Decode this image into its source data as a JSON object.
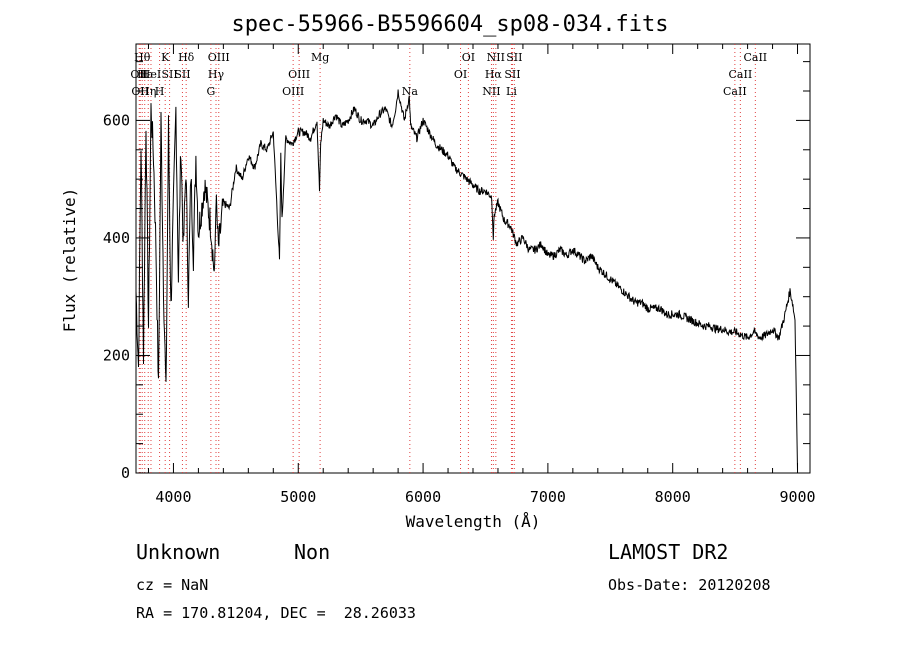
{
  "chart_data": {
    "type": "line",
    "title": "spec-55966-B5596604_sp08-034.fits",
    "xlabel": "Wavelength (Å)",
    "ylabel": "Flux (relative)",
    "xlim": [
      3700,
      9100
    ],
    "ylim": [
      0,
      730
    ],
    "x_ticks": [
      4000,
      5000,
      6000,
      7000,
      8000,
      9000
    ],
    "y_ticks": [
      0,
      200,
      400,
      600
    ],
    "grid": false,
    "series": [
      {
        "x": [
          3700,
          3720,
          3740,
          3760,
          3780,
          3800,
          3820,
          3840,
          3860,
          3880,
          3900,
          3920,
          3940,
          3960,
          3980,
          4000,
          4020,
          4040,
          4060,
          4080,
          4100,
          4120,
          4140,
          4160,
          4180,
          4200,
          4250,
          4300,
          4330,
          4340,
          4360,
          4400,
          4450,
          4500,
          4550,
          4600,
          4650,
          4700,
          4750,
          4800,
          4850,
          4860,
          4870,
          4900,
          4950,
          5000,
          5050,
          5100,
          5150,
          5170,
          5180,
          5200,
          5250,
          5300,
          5350,
          5400,
          5450,
          5500,
          5550,
          5600,
          5650,
          5700,
          5750,
          5780,
          5800,
          5850,
          5890,
          5900,
          5950,
          6000,
          6050,
          6100,
          6150,
          6200,
          6250,
          6300,
          6350,
          6400,
          6450,
          6500,
          6550,
          6563,
          6570,
          6600,
          6650,
          6700,
          6750,
          6800,
          6850,
          6900,
          6950,
          7000,
          7050,
          7100,
          7150,
          7200,
          7250,
          7300,
          7350,
          7400,
          7450,
          7500,
          7550,
          7600,
          7650,
          7700,
          7750,
          7800,
          7850,
          7900,
          7950,
          8000,
          8050,
          8100,
          8150,
          8200,
          8250,
          8300,
          8350,
          8400,
          8450,
          8500,
          8550,
          8600,
          8650,
          8700,
          8750,
          8800,
          8850,
          8900,
          8920,
          8940,
          8960,
          8980,
          8990,
          9000
        ],
        "y": [
          310,
          180,
          560,
          200,
          600,
          250,
          620,
          540,
          380,
          140,
          600,
          320,
          130,
          590,
          280,
          450,
          620,
          330,
          560,
          380,
          520,
          300,
          510,
          370,
          540,
          410,
          490,
          420,
          330,
          470,
          380,
          460,
          450,
          520,
          500,
          540,
          520,
          560,
          550,
          580,
          360,
          540,
          430,
          570,
          560,
          580,
          580,
          570,
          600,
          480,
          560,
          600,
          590,
          610,
          590,
          600,
          620,
          600,
          600,
          590,
          610,
          620,
          590,
          620,
          650,
          600,
          640,
          590,
          570,
          600,
          580,
          560,
          550,
          540,
          520,
          510,
          500,
          490,
          480,
          480,
          470,
          400,
          440,
          460,
          430,
          420,
          390,
          400,
          380,
          380,
          390,
          370,
          370,
          380,
          370,
          380,
          370,
          360,
          370,
          350,
          340,
          330,
          320,
          310,
          300,
          290,
          290,
          280,
          280,
          280,
          270,
          270,
          270,
          265,
          260,
          255,
          250,
          250,
          245,
          245,
          240,
          240,
          235,
          230,
          240,
          230,
          235,
          245,
          230,
          270,
          290,
          310,
          290,
          260,
          130,
          5
        ]
      }
    ],
    "lines": [
      {
        "x": 3726,
        "row": 1,
        "text": "OII"
      },
      {
        "x": 3734,
        "row": 2,
        "text": "OII"
      },
      {
        "x": 3750,
        "row": 0,
        "text": "Hθ"
      },
      {
        "x": 3770,
        "row": 1,
        "text": "Hε"
      },
      {
        "x": 3798,
        "row": 2,
        "text": "Hη"
      },
      {
        "x": 3820,
        "row": 1,
        "text": "HeI"
      },
      {
        "x": 3889,
        "row": 2,
        "text": "H"
      },
      {
        "x": 3934,
        "row": 0,
        "text": "K"
      },
      {
        "x": 3969,
        "row": 1,
        "text": "SII"
      },
      {
        "x": 4072,
        "row": 1,
        "text": "SII"
      },
      {
        "x": 4102,
        "row": 0,
        "text": "Hδ"
      },
      {
        "x": 4300,
        "row": 2,
        "text": "G"
      },
      {
        "x": 4341,
        "row": 1,
        "text": "Hγ"
      },
      {
        "x": 4363,
        "row": 0,
        "text": "OIII"
      },
      {
        "x": 4959,
        "row": 2,
        "text": "OIII"
      },
      {
        "x": 5007,
        "row": 1,
        "text": "OIII"
      },
      {
        "x": 5175,
        "row": 0,
        "text": "Mg"
      },
      {
        "x": 5894,
        "row": 2,
        "text": "Na"
      },
      {
        "x": 6300,
        "row": 1,
        "text": "OI"
      },
      {
        "x": 6363,
        "row": 0,
        "text": "OI"
      },
      {
        "x": 6548,
        "row": 2,
        "text": "NII"
      },
      {
        "x": 6563,
        "row": 1,
        "text": "Hα"
      },
      {
        "x": 6583,
        "row": 0,
        "text": "NII"
      },
      {
        "x": 6708,
        "row": 2,
        "text": "Li"
      },
      {
        "x": 6716,
        "row": 1,
        "text": "SII"
      },
      {
        "x": 6731,
        "row": 0,
        "text": "SII"
      },
      {
        "x": 8498,
        "row": 2,
        "text": "CaII"
      },
      {
        "x": 8542,
        "row": 1,
        "text": "CaII"
      },
      {
        "x": 8662,
        "row": 0,
        "text": "CaII"
      }
    ]
  },
  "info": {
    "class": "Unknown",
    "subclass": "Non",
    "survey": "LAMOST DR2",
    "cz": "cz = NaN",
    "obs_date": "Obs-Date: 20120208",
    "coords": "RA = 170.81204, DEC =  28.26033"
  }
}
